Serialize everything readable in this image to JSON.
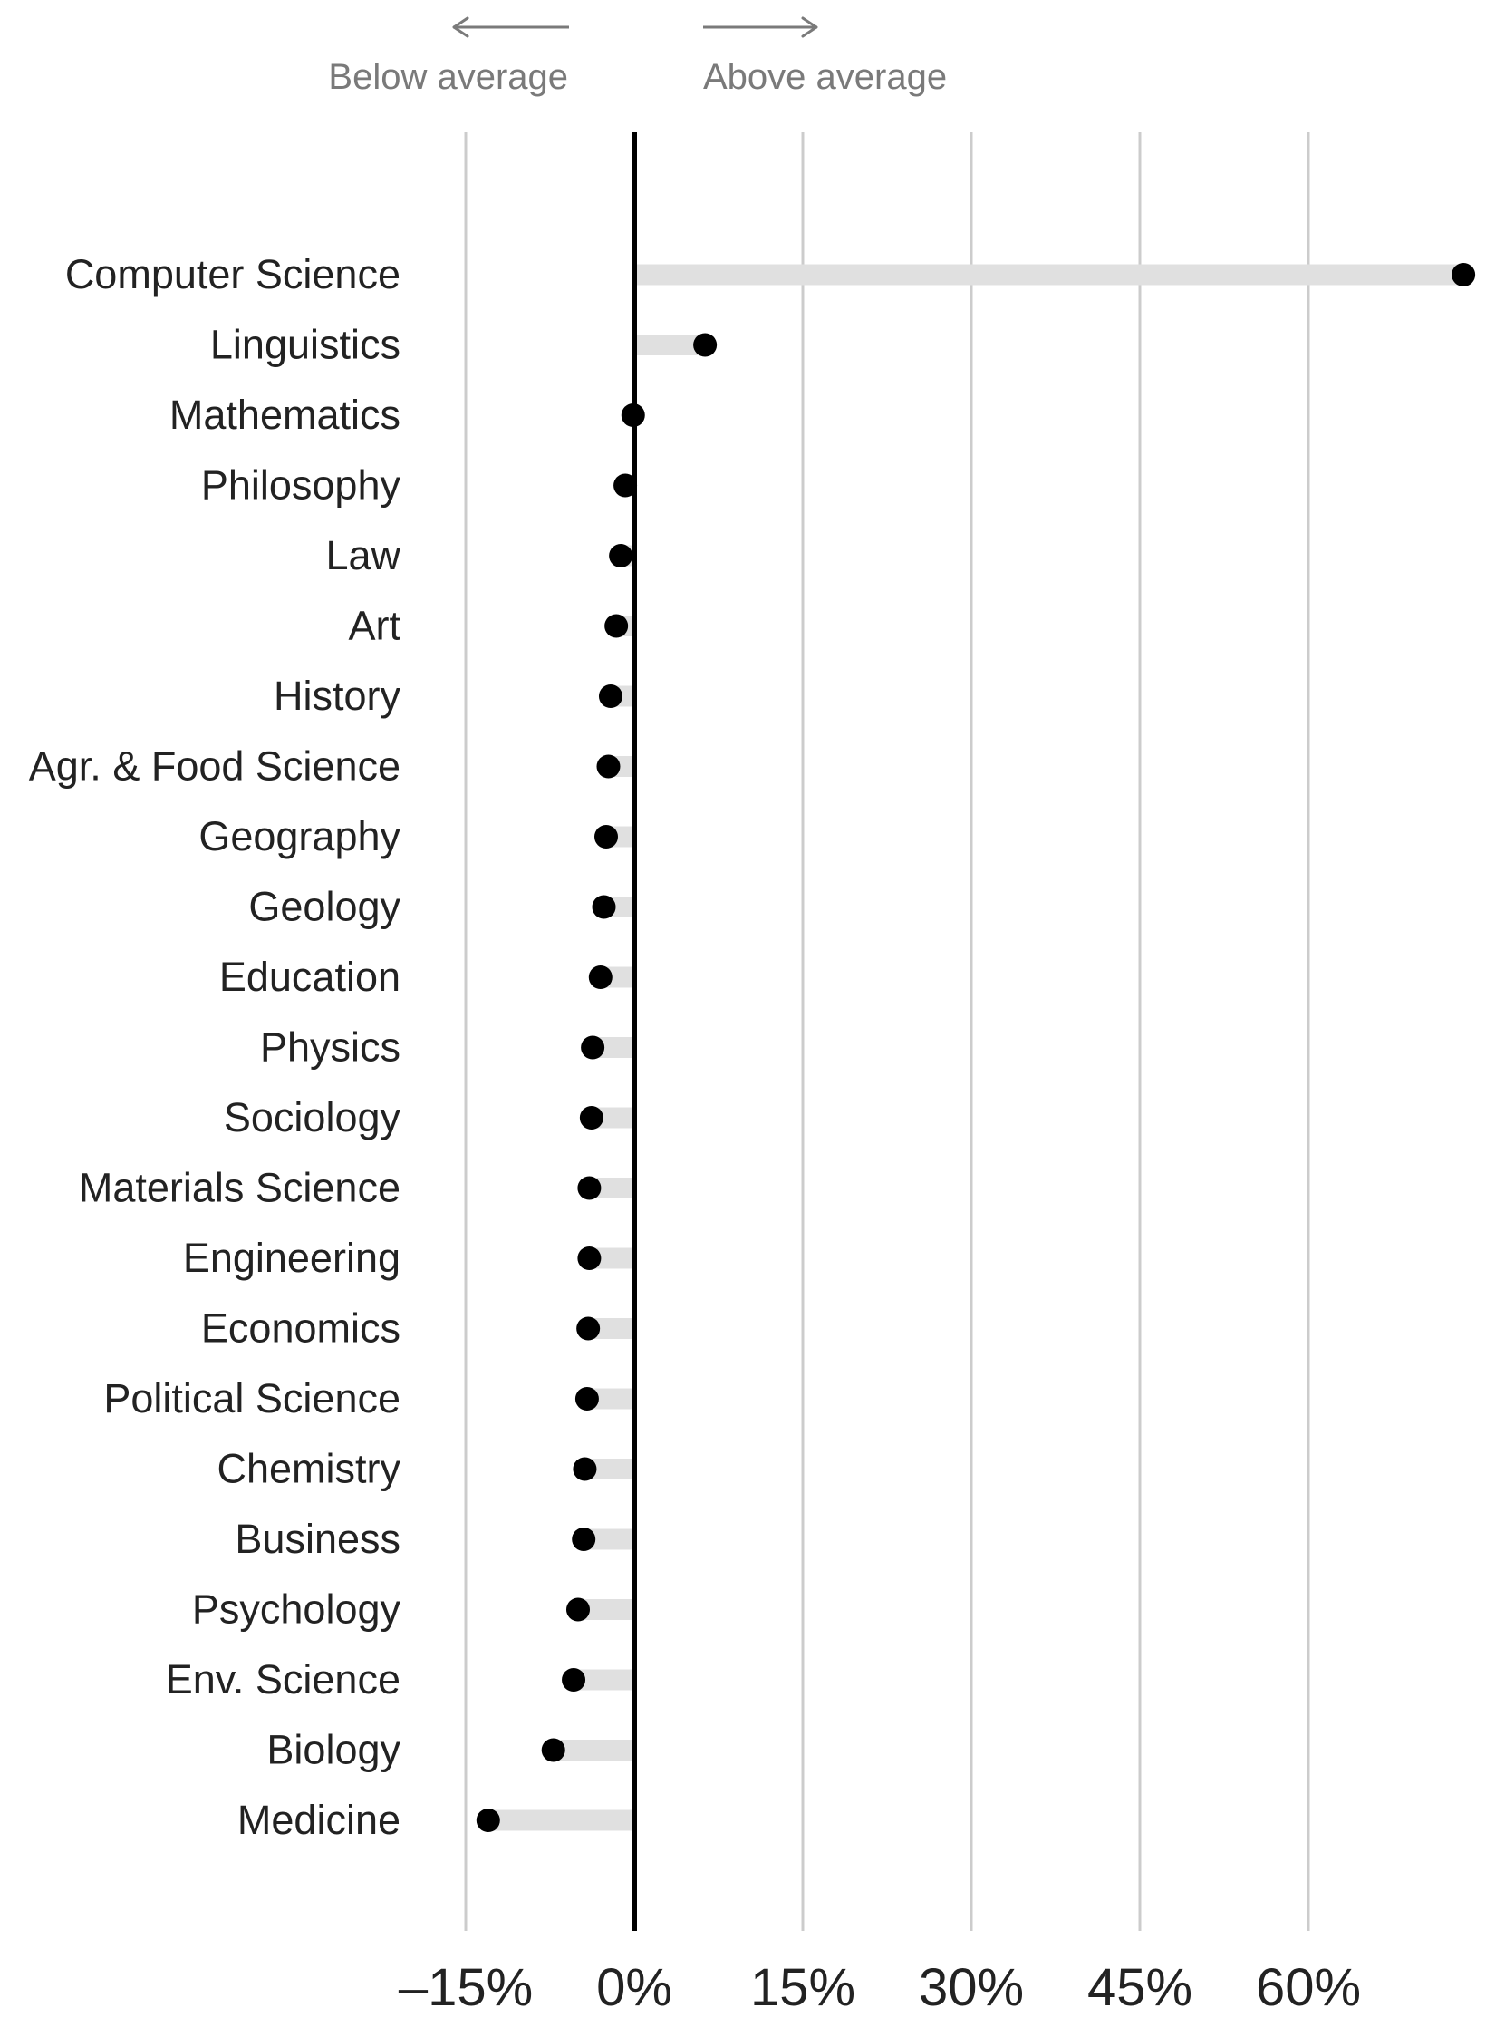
{
  "chart_data": {
    "type": "dot",
    "title": "",
    "xlabel": "",
    "ylabel": "",
    "annotations": {
      "left": "Below average",
      "right": "Above average"
    },
    "xlim": [
      -20,
      74
    ],
    "x_ticks": [
      -15,
      0,
      15,
      30,
      45,
      60
    ],
    "x_tick_labels": [
      "–15%",
      "0%",
      "15%",
      "30%",
      "45%",
      "60%"
    ],
    "grid": true,
    "categories": [
      "Computer Science",
      "Linguistics",
      "Mathematics",
      "Philosophy",
      "Law",
      "Art",
      "History",
      "Agr. & Food Science",
      "Geography",
      "Geology",
      "Education",
      "Physics",
      "Sociology",
      "Materials Science",
      "Engineering",
      "Economics",
      "Political Science",
      "Chemistry",
      "Business",
      "Psychology",
      "Env. Science",
      "Biology",
      "Medicine"
    ],
    "values": [
      73.8,
      6.3,
      -0.1,
      -0.8,
      -1.2,
      -1.6,
      -2.1,
      -2.3,
      -2.5,
      -2.7,
      -3.0,
      -3.7,
      -3.8,
      -4.0,
      -4.0,
      -4.1,
      -4.2,
      -4.4,
      -4.5,
      -5.0,
      -5.4,
      -7.2,
      -13.0
    ],
    "colors": {
      "dot": "#000000",
      "bar": "#e0e0e0",
      "grid": "#cccccc",
      "zero_line": "#000000",
      "annotation": "#7a7a7a",
      "text": "#222222"
    }
  }
}
